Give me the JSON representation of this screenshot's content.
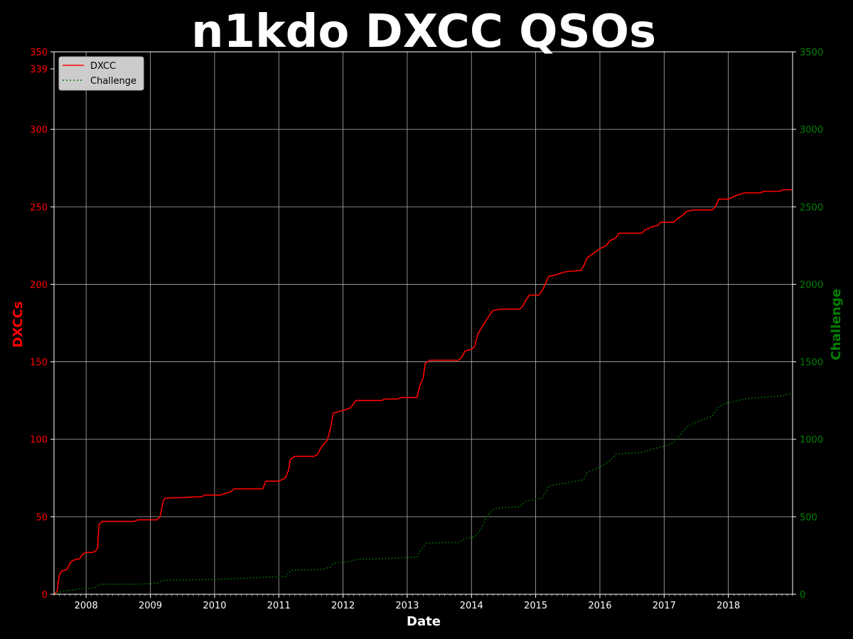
{
  "chart_data": {
    "type": "line",
    "title": "n1kdo DXCC QSOs",
    "xlabel": "Date",
    "ylabel": "DXCCs",
    "y2label": "Challenge",
    "xlim": [
      2007.5,
      2019.0
    ],
    "ylim": [
      0,
      350
    ],
    "y2lim": [
      0,
      3500
    ],
    "x_ticks": [
      "2008",
      "2009",
      "2010",
      "2011",
      "2012",
      "2013",
      "2014",
      "2015",
      "2016",
      "2017",
      "2018"
    ],
    "y_ticks": [
      "0",
      "50",
      "100",
      "150",
      "200",
      "250",
      "300",
      "350"
    ],
    "y_extra_tick": "339",
    "y2_ticks": [
      "0",
      "500",
      "1000",
      "1500",
      "2000",
      "2500",
      "3000",
      "3500"
    ],
    "grid": true,
    "legend_position": "top-left",
    "colors": {
      "dxcc": "#ff0000",
      "challenge": "#008000",
      "background": "#000000",
      "text": "#ffffff"
    },
    "series": [
      {
        "name": "DXCC",
        "axis": "left",
        "style": "solid",
        "points": [
          [
            2007.5,
            0
          ],
          [
            2007.55,
            2
          ],
          [
            2007.58,
            12
          ],
          [
            2007.62,
            15
          ],
          [
            2007.7,
            16
          ],
          [
            2007.75,
            20
          ],
          [
            2007.8,
            22
          ],
          [
            2007.9,
            23
          ],
          [
            2007.95,
            26
          ],
          [
            2008.0,
            27
          ],
          [
            2008.1,
            27
          ],
          [
            2008.15,
            28
          ],
          [
            2008.18,
            30
          ],
          [
            2008.2,
            45
          ],
          [
            2008.25,
            47
          ],
          [
            2008.75,
            47
          ],
          [
            2008.8,
            48
          ],
          [
            2009.1,
            48
          ],
          [
            2009.15,
            50
          ],
          [
            2009.2,
            60
          ],
          [
            2009.23,
            62
          ],
          [
            2009.8,
            63
          ],
          [
            2009.85,
            64
          ],
          [
            2010.1,
            64
          ],
          [
            2010.15,
            65
          ],
          [
            2010.25,
            66
          ],
          [
            2010.3,
            68
          ],
          [
            2010.75,
            68
          ],
          [
            2010.8,
            73
          ],
          [
            2011.0,
            73
          ],
          [
            2011.1,
            75
          ],
          [
            2011.15,
            80
          ],
          [
            2011.18,
            87
          ],
          [
            2011.25,
            89
          ],
          [
            2011.55,
            89
          ],
          [
            2011.6,
            90
          ],
          [
            2011.65,
            94
          ],
          [
            2011.7,
            97
          ],
          [
            2011.75,
            99
          ],
          [
            2011.8,
            106
          ],
          [
            2011.85,
            117
          ],
          [
            2011.95,
            118
          ],
          [
            2012.1,
            120
          ],
          [
            2012.15,
            122
          ],
          [
            2012.2,
            125
          ],
          [
            2012.6,
            125
          ],
          [
            2012.65,
            126
          ],
          [
            2012.85,
            126
          ],
          [
            2012.9,
            127
          ],
          [
            2013.15,
            127
          ],
          [
            2013.2,
            135
          ],
          [
            2013.25,
            140
          ],
          [
            2013.28,
            149
          ],
          [
            2013.35,
            151
          ],
          [
            2013.8,
            151
          ],
          [
            2013.85,
            153
          ],
          [
            2013.9,
            157
          ],
          [
            2014.0,
            158
          ],
          [
            2014.05,
            160
          ],
          [
            2014.1,
            168
          ],
          [
            2014.2,
            175
          ],
          [
            2014.28,
            180
          ],
          [
            2014.33,
            183
          ],
          [
            2014.45,
            184
          ],
          [
            2014.75,
            184
          ],
          [
            2014.8,
            186
          ],
          [
            2014.85,
            190
          ],
          [
            2014.9,
            193
          ],
          [
            2015.05,
            193
          ],
          [
            2015.1,
            196
          ],
          [
            2015.15,
            200
          ],
          [
            2015.2,
            205
          ],
          [
            2015.3,
            206
          ],
          [
            2015.45,
            208
          ],
          [
            2015.7,
            209
          ],
          [
            2015.75,
            212
          ],
          [
            2015.8,
            217
          ],
          [
            2015.9,
            220
          ],
          [
            2016.0,
            223
          ],
          [
            2016.1,
            225
          ],
          [
            2016.15,
            228
          ],
          [
            2016.25,
            230
          ],
          [
            2016.3,
            233
          ],
          [
            2016.65,
            233
          ],
          [
            2016.7,
            235
          ],
          [
            2016.8,
            237
          ],
          [
            2016.9,
            238
          ],
          [
            2016.95,
            240
          ],
          [
            2017.15,
            240
          ],
          [
            2017.2,
            242
          ],
          [
            2017.3,
            245
          ],
          [
            2017.35,
            247
          ],
          [
            2017.45,
            248
          ],
          [
            2017.75,
            248
          ],
          [
            2017.8,
            250
          ],
          [
            2017.85,
            255
          ],
          [
            2018.0,
            255
          ],
          [
            2018.1,
            257
          ],
          [
            2018.25,
            259
          ],
          [
            2018.5,
            259
          ],
          [
            2018.55,
            260
          ],
          [
            2018.8,
            260
          ],
          [
            2018.85,
            261
          ],
          [
            2019.0,
            261
          ]
        ]
      },
      {
        "name": "Challenge",
        "axis": "right",
        "style": "dotted",
        "points": [
          [
            2007.5,
            0
          ],
          [
            2007.6,
            15
          ],
          [
            2007.75,
            25
          ],
          [
            2007.9,
            35
          ],
          [
            2008.1,
            40
          ],
          [
            2008.15,
            45
          ],
          [
            2008.2,
            65
          ],
          [
            2008.8,
            65
          ],
          [
            2009.1,
            70
          ],
          [
            2009.2,
            90
          ],
          [
            2009.8,
            95
          ],
          [
            2010.3,
            100
          ],
          [
            2010.8,
            110
          ],
          [
            2011.1,
            115
          ],
          [
            2011.2,
            155
          ],
          [
            2011.65,
            160
          ],
          [
            2011.8,
            175
          ],
          [
            2011.85,
            200
          ],
          [
            2012.1,
            210
          ],
          [
            2012.2,
            225
          ],
          [
            2012.65,
            230
          ],
          [
            2012.9,
            235
          ],
          [
            2013.15,
            240
          ],
          [
            2013.2,
            280
          ],
          [
            2013.3,
            330
          ],
          [
            2013.8,
            335
          ],
          [
            2013.9,
            360
          ],
          [
            2014.05,
            370
          ],
          [
            2014.15,
            420
          ],
          [
            2014.25,
            510
          ],
          [
            2014.35,
            550
          ],
          [
            2014.5,
            560
          ],
          [
            2014.75,
            565
          ],
          [
            2014.85,
            600
          ],
          [
            2015.1,
            620
          ],
          [
            2015.15,
            650
          ],
          [
            2015.2,
            700
          ],
          [
            2015.5,
            720
          ],
          [
            2015.75,
            740
          ],
          [
            2015.8,
            785
          ],
          [
            2016.0,
            820
          ],
          [
            2016.15,
            860
          ],
          [
            2016.25,
            905
          ],
          [
            2016.65,
            915
          ],
          [
            2016.8,
            935
          ],
          [
            2017.0,
            955
          ],
          [
            2017.15,
            980
          ],
          [
            2017.25,
            1030
          ],
          [
            2017.35,
            1080
          ],
          [
            2017.5,
            1110
          ],
          [
            2017.75,
            1150
          ],
          [
            2017.85,
            1210
          ],
          [
            2017.95,
            1230
          ],
          [
            2018.15,
            1250
          ],
          [
            2018.25,
            1260
          ],
          [
            2018.5,
            1270
          ],
          [
            2018.85,
            1280
          ],
          [
            2019.0,
            1300
          ]
        ]
      }
    ]
  }
}
